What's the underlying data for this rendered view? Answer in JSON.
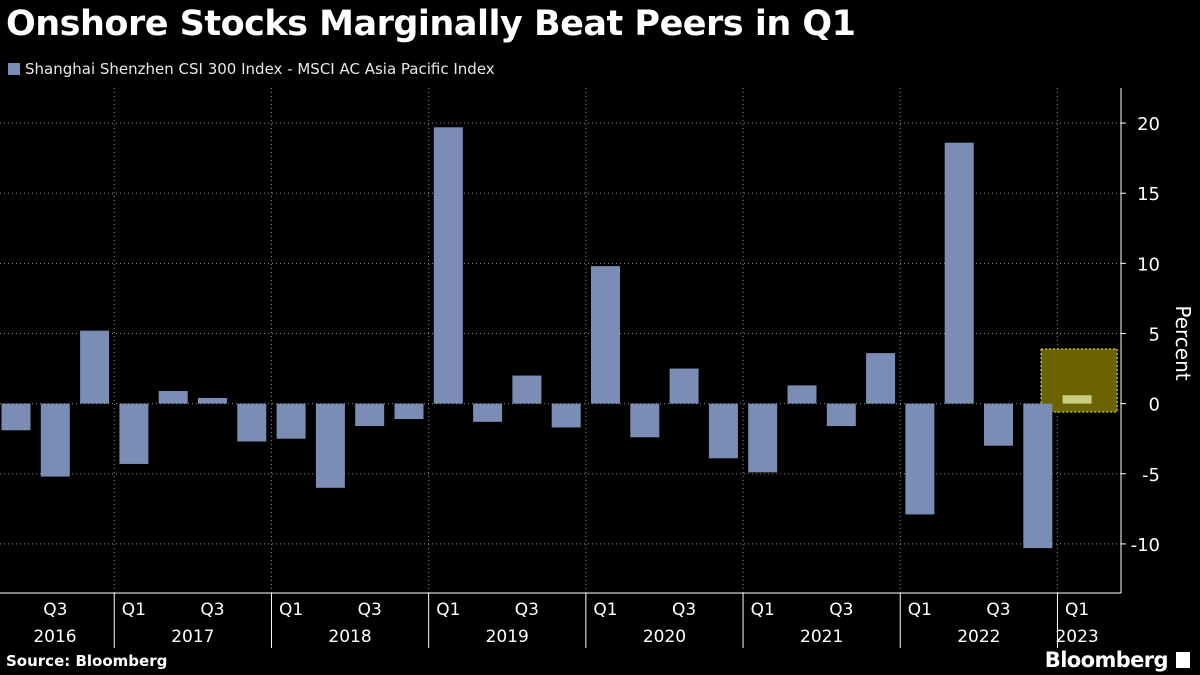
{
  "title": "Onshore Stocks Marginally Beat Peers in Q1",
  "source": "Source: Bloomberg",
  "brand": "Bloomberg",
  "colors": {
    "bar": "#7b8db5",
    "highlight_fill": "#6b6300",
    "highlight_border": "#d8d84a",
    "highlight_bar": "#c9cd82",
    "grid": "#8a8a8a",
    "axis": "#ffffff",
    "background": "#000000"
  },
  "chart_data": {
    "type": "bar",
    "title": "Onshore Stocks Marginally Beat Peers in Q1",
    "series_name": "Shanghai Shenzhen CSI 300 Index - MSCI AC Asia Pacific Index",
    "ylabel": "Percent",
    "ylim": [
      -13.5,
      22.5
    ],
    "yticks": [
      -10,
      -5,
      0,
      5,
      10,
      15,
      20
    ],
    "ytick_labels": [
      "-10",
      "-5",
      "0",
      "5",
      "10",
      "15",
      "20"
    ],
    "categories": [
      "2016 Q2",
      "2016 Q3",
      "2016 Q4",
      "2017 Q1",
      "2017 Q2",
      "2017 Q3",
      "2017 Q4",
      "2018 Q1",
      "2018 Q2",
      "2018 Q3",
      "2018 Q4",
      "2019 Q1",
      "2019 Q2",
      "2019 Q3",
      "2019 Q4",
      "2020 Q1",
      "2020 Q2",
      "2020 Q3",
      "2020 Q4",
      "2021 Q1",
      "2021 Q2",
      "2021 Q3",
      "2021 Q4",
      "2022 Q1",
      "2022 Q2",
      "2022 Q3",
      "2022 Q4",
      "2023 Q1"
    ],
    "values": [
      -1.9,
      -5.2,
      5.2,
      -4.3,
      0.9,
      0.4,
      -2.7,
      -2.5,
      -6.0,
      -1.6,
      -1.1,
      19.7,
      -1.3,
      2.0,
      -1.7,
      9.8,
      -2.4,
      2.5,
      -3.9,
      -4.9,
      1.3,
      -1.6,
      3.6,
      -7.9,
      18.6,
      -3.0,
      -10.3,
      0.6
    ],
    "highlight": {
      "category": "2023 Q1",
      "ymin": -0.6,
      "ymax": 3.9
    },
    "x_quarter_labels": [
      {
        "index": 1,
        "text": "Q3"
      },
      {
        "index": 3,
        "text": "Q1"
      },
      {
        "index": 5,
        "text": "Q3"
      },
      {
        "index": 7,
        "text": "Q1"
      },
      {
        "index": 9,
        "text": "Q3"
      },
      {
        "index": 11,
        "text": "Q1"
      },
      {
        "index": 13,
        "text": "Q3"
      },
      {
        "index": 15,
        "text": "Q1"
      },
      {
        "index": 17,
        "text": "Q3"
      },
      {
        "index": 19,
        "text": "Q1"
      },
      {
        "index": 21,
        "text": "Q3"
      },
      {
        "index": 23,
        "text": "Q1"
      },
      {
        "index": 25,
        "text": "Q3"
      },
      {
        "index": 27,
        "text": "Q1"
      }
    ],
    "years": [
      {
        "label": "2016",
        "start": 0,
        "end": 2
      },
      {
        "label": "2017",
        "start": 3,
        "end": 6
      },
      {
        "label": "2018",
        "start": 7,
        "end": 10
      },
      {
        "label": "2019",
        "start": 11,
        "end": 14
      },
      {
        "label": "2020",
        "start": 15,
        "end": 18
      },
      {
        "label": "2021",
        "start": 19,
        "end": 22
      },
      {
        "label": "2022",
        "start": 23,
        "end": 26
      },
      {
        "label": "2023",
        "start": 27,
        "end": 27
      }
    ]
  }
}
